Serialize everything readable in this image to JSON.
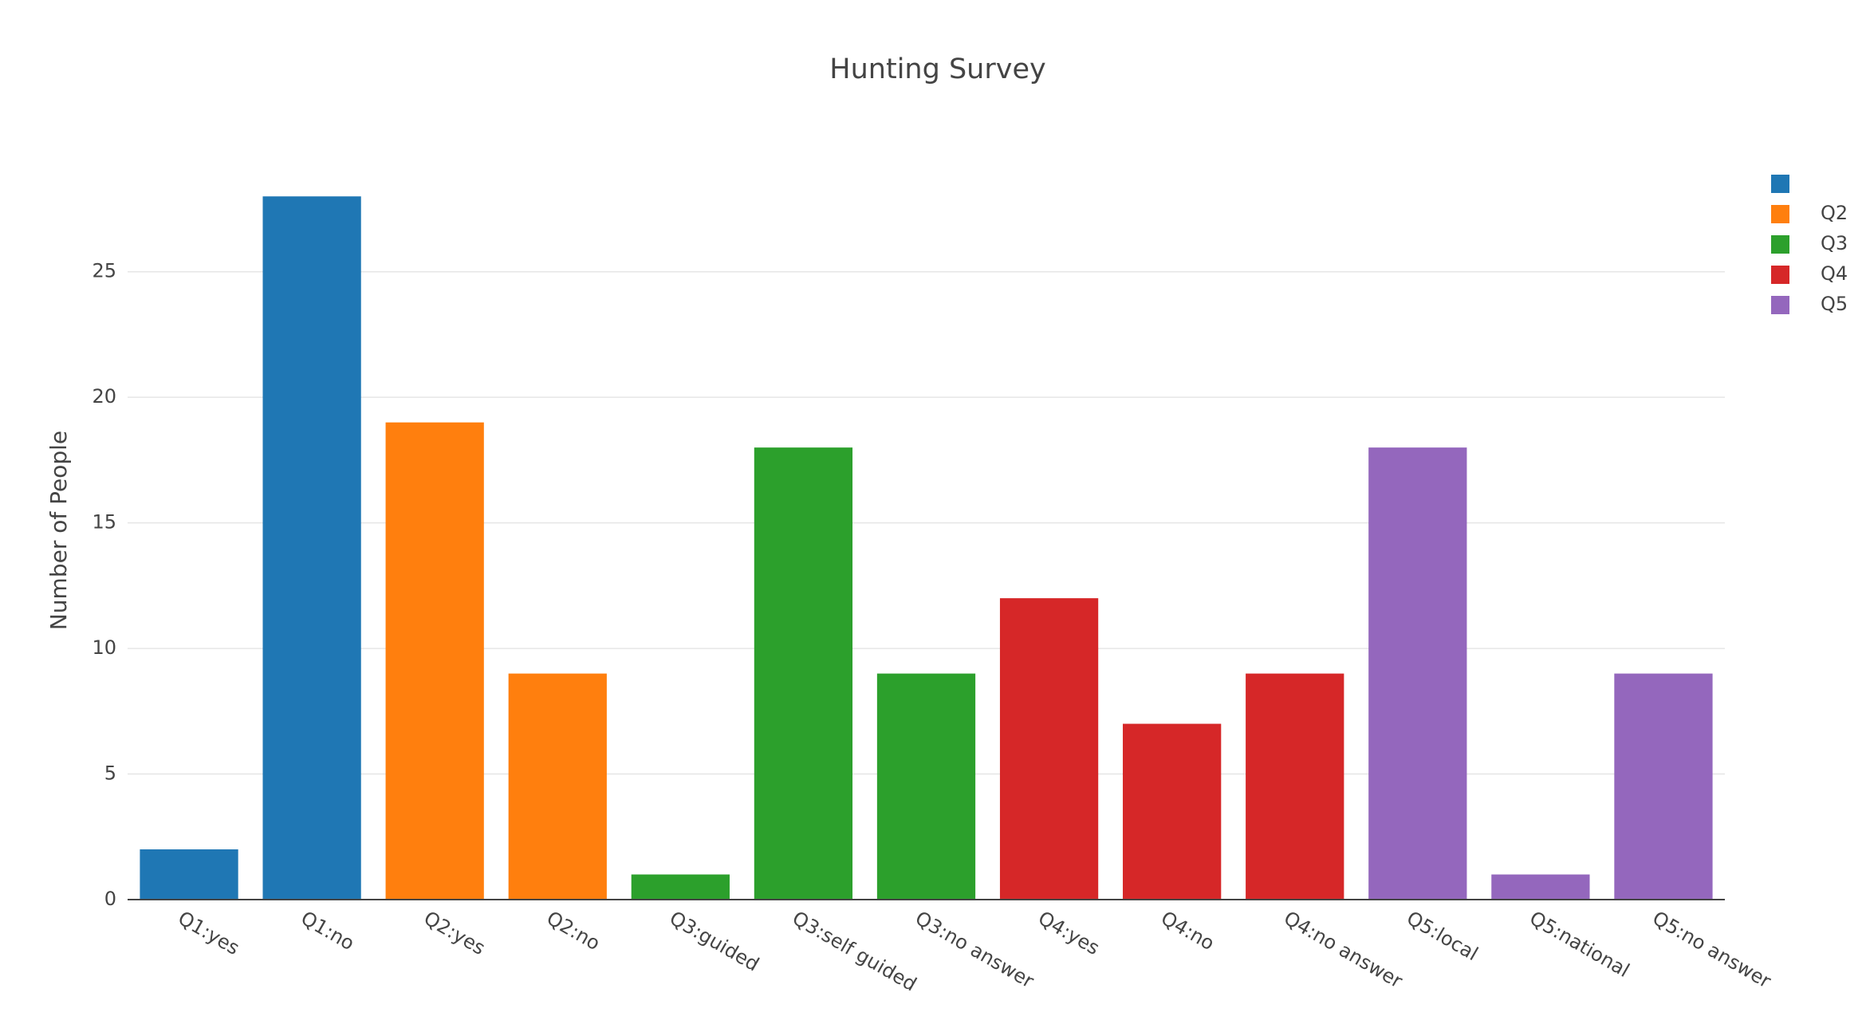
{
  "chart_data": {
    "type": "bar",
    "title": "Hunting Survey",
    "y_label": "Number of People",
    "categories": [
      "Q1:yes",
      "Q1:no",
      "Q2:yes",
      "Q2:no",
      "Q3:guided",
      "Q3:self guided",
      "Q3:no answer",
      "Q4:yes",
      "Q4:no",
      "Q4:no answer",
      "Q5:local",
      "Q5:national",
      "Q5:no answer"
    ],
    "series": [
      {
        "color": "#1f77b4",
        "values": [
          2,
          28,
          null,
          null,
          null,
          null,
          null,
          null,
          null,
          null,
          null,
          null,
          null
        ]
      },
      {
        "name": "Q2",
        "color": "#ff7f0e",
        "values": [
          null,
          null,
          19,
          9,
          null,
          null,
          null,
          null,
          null,
          null,
          null,
          null,
          null
        ]
      },
      {
        "name": "Q3",
        "color": "#2ca02c",
        "values": [
          null,
          null,
          null,
          null,
          1,
          18,
          9,
          null,
          null,
          null,
          null,
          null,
          null
        ]
      },
      {
        "name": "Q4",
        "color": "#d62728",
        "values": [
          null,
          null,
          null,
          null,
          null,
          null,
          null,
          12,
          7,
          9,
          null,
          null,
          null
        ]
      },
      {
        "name": "Q5",
        "color": "#9467bd",
        "values": [
          null,
          null,
          null,
          null,
          null,
          null,
          null,
          null,
          null,
          null,
          18,
          1,
          9
        ]
      }
    ],
    "ylim": [
      0,
      29.5
    ],
    "yticks": [
      0,
      5,
      10,
      15,
      20,
      25
    ],
    "grid": true,
    "legend": "right"
  }
}
